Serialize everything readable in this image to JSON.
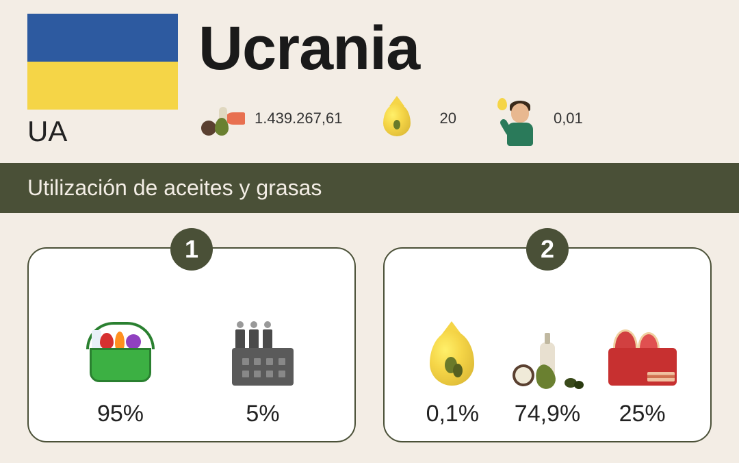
{
  "header": {
    "country_name": "Ucrania",
    "country_code": "UA",
    "flag": {
      "top_color": "#2d5aa0",
      "bottom_color": "#f5d547"
    },
    "background_color": "#f3ede5",
    "stats": [
      {
        "icon": "food-oils",
        "value": "1.439.267,61"
      },
      {
        "icon": "oil-drop",
        "value": "20"
      },
      {
        "icon": "person-drop",
        "value": "0,01"
      }
    ]
  },
  "section": {
    "title": "Utilización de aceites y grasas",
    "title_bg_color": "#4a5037",
    "title_text_color": "#f3ede5"
  },
  "cards": [
    {
      "badge": "1",
      "badge_bg": "#4a5037",
      "items": [
        {
          "icon": "grocery-basket",
          "value": "95%"
        },
        {
          "icon": "factory",
          "value": "5%"
        }
      ]
    },
    {
      "badge": "2",
      "badge_bg": "#4a5037",
      "items": [
        {
          "icon": "oil-drop-olive",
          "value": "0,1%"
        },
        {
          "icon": "oils-foods",
          "value": "74,9%"
        },
        {
          "icon": "meat-box",
          "value": "25%"
        }
      ]
    }
  ],
  "styling": {
    "card_bg": "#ffffff",
    "card_border": "#4a5037",
    "card_border_radius": 28,
    "value_fontsize": 34,
    "value_color": "#222222",
    "title_fontsize": 32,
    "country_fontsize": 90,
    "code_fontsize": 42,
    "stat_fontsize": 22
  }
}
